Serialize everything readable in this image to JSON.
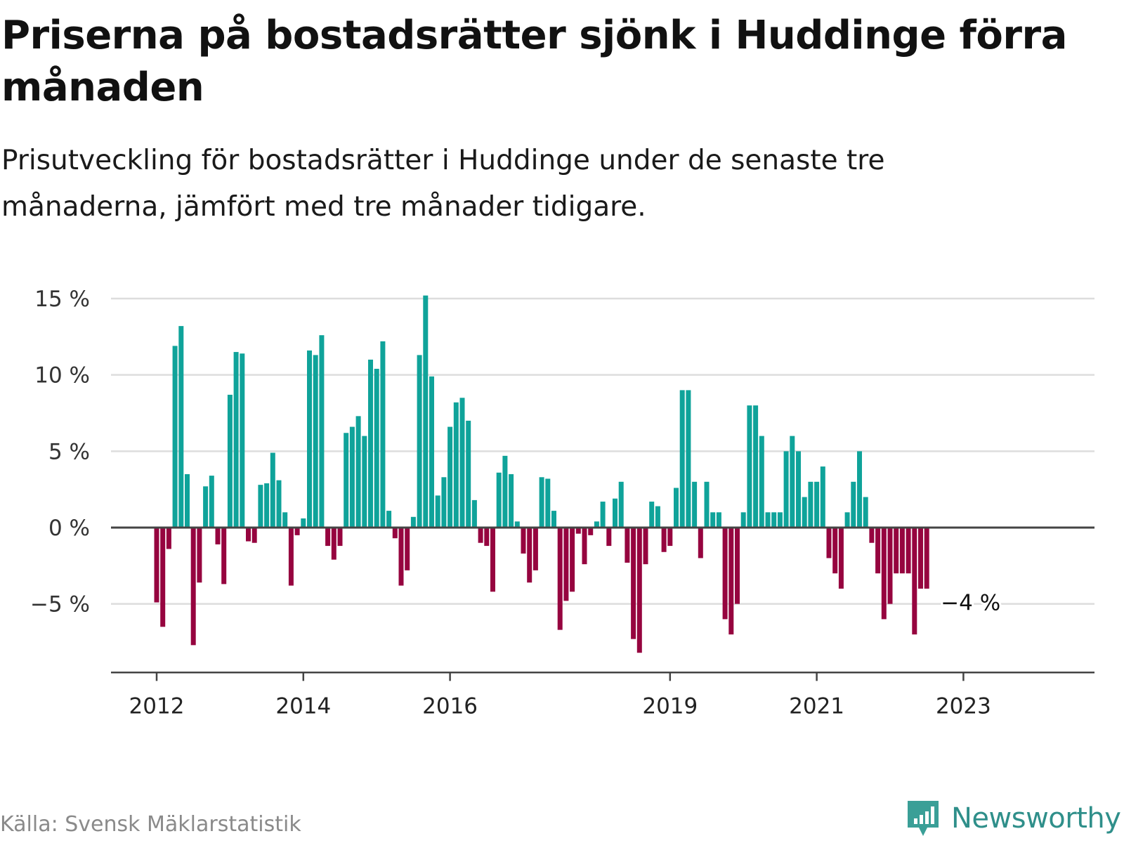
{
  "title": "Priserna på bostadsrätter sjönk i Huddinge förra månaden",
  "subtitle": "Prisutveckling för bostadsrätter i Huddinge under de senaste tre månaderna, jämfört med tre månader tidigare.",
  "source": "Källa: Svensk Mäklarstatistik",
  "brand": {
    "name": "Newsworthy",
    "icon": "newsworthy-logo-icon"
  },
  "colors": {
    "positive": "#0fa39a",
    "negative": "#96043f",
    "grid": "#dddddd",
    "axis": "#444444",
    "brand": "#2f8f8a"
  },
  "chart_data": {
    "type": "bar",
    "ylim": [
      -9.4,
      15.4
    ],
    "yticks": [
      15,
      10,
      5,
      0,
      -5
    ],
    "ytick_labels": [
      "15 %",
      "10 %",
      "5 %",
      "0 %",
      "−5 %"
    ],
    "xtick_labels": [
      {
        "label": "2012",
        "month_index": 0
      },
      {
        "label": "2014",
        "month_index": 24
      },
      {
        "label": "2016",
        "month_index": 48
      },
      {
        "label": "2019",
        "month_index": 84
      },
      {
        "label": "2021",
        "month_index": 108
      },
      {
        "label": "2023",
        "month_index": 132
      }
    ],
    "values": [
      -4.9,
      -6.5,
      -1.4,
      11.9,
      13.2,
      3.5,
      -7.7,
      -3.6,
      2.7,
      3.4,
      -1.1,
      -3.7,
      8.7,
      11.5,
      11.4,
      -0.9,
      -1.0,
      2.8,
      2.9,
      4.9,
      3.1,
      1.0,
      -3.8,
      -0.5,
      0.6,
      11.6,
      11.3,
      12.6,
      -1.2,
      -2.1,
      -1.2,
      6.2,
      6.6,
      7.3,
      6.0,
      11.0,
      10.4,
      12.2,
      1.1,
      -0.7,
      -3.8,
      -2.8,
      0.7,
      11.3,
      15.2,
      9.9,
      2.1,
      3.3,
      6.6,
      8.2,
      8.5,
      7.0,
      1.8,
      -1.0,
      -1.2,
      -4.2,
      3.6,
      4.7,
      3.5,
      0.4,
      -1.7,
      -3.6,
      -2.8,
      3.3,
      3.2,
      1.1,
      -6.7,
      -4.8,
      -4.2,
      -0.4,
      -2.4,
      -0.5,
      0.4,
      1.7,
      -1.2,
      1.9,
      3.0,
      -2.3,
      -7.3,
      -8.2,
      -2.4,
      1.7,
      1.4,
      -1.6,
      -1.2,
      2.6,
      9.0,
      9.0,
      3.0,
      -2.0,
      3.0,
      1.0,
      1.0,
      -6.0,
      -7.0,
      -5.0,
      1.0,
      8.0,
      8.0,
      6.0,
      1.0,
      1.0,
      1.0,
      5.0,
      6.0,
      5.0,
      2.0,
      3.0,
      3.0,
      4.0,
      -2.0,
      -3.0,
      -4.0,
      1.0,
      3.0,
      5.0,
      2.0,
      -1.0,
      -3.0,
      -6.0,
      -5.0,
      -3.0,
      -3.0,
      -3.0,
      -7.0,
      -4.0,
      -4.0
    ],
    "first_bar_month_index": 0,
    "annotation": {
      "text": "−4 %",
      "month_index": 126
    },
    "grid": true,
    "legend": "none"
  }
}
